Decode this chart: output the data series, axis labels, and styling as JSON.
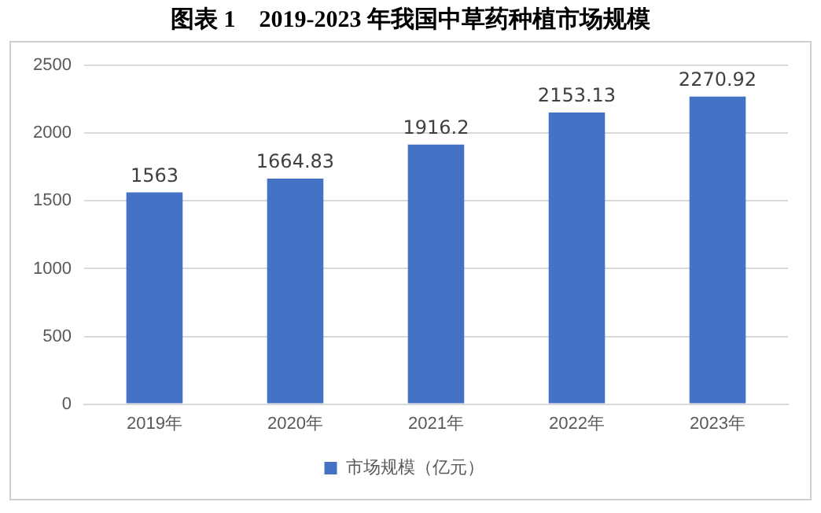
{
  "chart_data": {
    "type": "bar",
    "title": "图表 1　2019-2023 年我国中草药种植市场规模",
    "categories": [
      "2019年",
      "2020年",
      "2021年",
      "2022年",
      "2023年"
    ],
    "series": [
      {
        "name": "市场规模（亿元）",
        "color": "#4472c4",
        "values": [
          1563,
          1664.83,
          1916.2,
          2153.13,
          2270.92
        ]
      }
    ],
    "ylim": [
      0,
      2500
    ],
    "yticks": [
      0,
      500,
      1000,
      1500,
      2000,
      2500
    ],
    "grid": "y",
    "legend": "bottom",
    "data_labels": true
  }
}
